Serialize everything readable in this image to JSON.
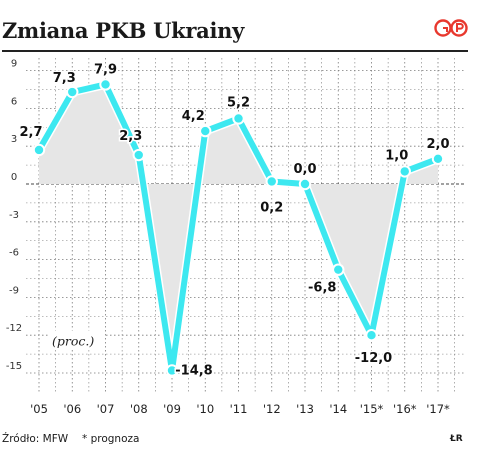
{
  "header": {
    "title": "Zmiana PKB Ukrainy",
    "logo_text": "GP"
  },
  "footer": {
    "source": "Źródło: MFW",
    "note": "* prognoza",
    "author": "ŁR"
  },
  "colors": {
    "line": "#3de8f0",
    "marker": "#3de8f0",
    "area": "#e6e6e6",
    "grid": "#7a7a7a",
    "logo": "#e8382e"
  },
  "chart_data": {
    "type": "line",
    "title": "Zmiana PKB Ukrainy",
    "unit_label": "(proc.)",
    "categories": [
      "'05",
      "'06",
      "'07",
      "'08",
      "'09",
      "'10",
      "'11",
      "'12",
      "'13",
      "'14",
      "'15*",
      "'16*",
      "'17*"
    ],
    "values": [
      2.7,
      7.3,
      7.9,
      2.3,
      -14.8,
      4.2,
      5.2,
      0.2,
      0.0,
      -6.8,
      -12.0,
      1.0,
      2.0
    ],
    "value_labels": [
      "2,7",
      "7,3",
      "7,9",
      "2,3",
      "-14,8",
      "4,2",
      "5,2",
      "0,2",
      "0,0",
      "-6,8",
      "-12,0",
      "1,0",
      "2,0"
    ],
    "yticks": [
      9,
      6,
      3,
      0,
      -3,
      -6,
      -9,
      -12,
      -15
    ],
    "ylim": [
      -16,
      10
    ],
    "grid": true,
    "area_fill_to_zero": true
  }
}
